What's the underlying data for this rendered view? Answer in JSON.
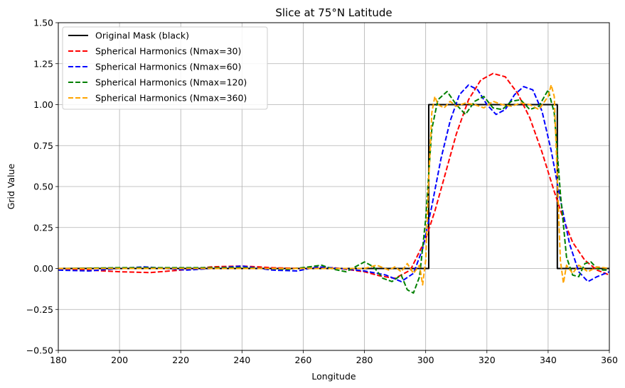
{
  "chart_data": {
    "type": "line",
    "title": "Slice at 75°N Latitude",
    "xlabel": "Longitude",
    "ylabel": "Grid Value",
    "xlim": [
      180,
      360
    ],
    "ylim": [
      -0.5,
      1.5
    ],
    "xticks": [
      180,
      200,
      220,
      240,
      260,
      280,
      300,
      320,
      340,
      360
    ],
    "yticks": [
      -0.5,
      -0.25,
      0.0,
      0.25,
      0.5,
      0.75,
      1.0,
      1.25,
      1.5
    ],
    "xtick_labels": [
      "180",
      "200",
      "220",
      "240",
      "260",
      "280",
      "300",
      "320",
      "340",
      "360"
    ],
    "ytick_labels": [
      "−0.50",
      "−0.25",
      "0.00",
      "0.25",
      "0.50",
      "0.75",
      "1.00",
      "1.25",
      "1.50"
    ],
    "grid": true,
    "legend_position": "top-left",
    "series": [
      {
        "name": "Original Mask (black)",
        "color": "#000000",
        "style": "solid",
        "x": [
          180,
          301,
          301,
          343,
          343,
          360
        ],
        "y": [
          0,
          0,
          1,
          1,
          0,
          0
        ]
      },
      {
        "name": "Spherical Harmonics (Nmax=30)",
        "color": "#ff0000",
        "style": "dashed",
        "x": [
          180,
          190,
          200,
          210,
          220,
          230,
          240,
          250,
          260,
          270,
          280,
          285,
          290,
          295,
          300,
          303,
          306,
          310,
          314,
          318,
          322,
          326,
          330,
          334,
          338,
          342,
          345,
          348,
          352,
          356,
          360
        ],
        "y": [
          0.0,
          -0.01,
          -0.02,
          -0.025,
          -0.01,
          0.01,
          0.015,
          0.005,
          0.0,
          0.005,
          -0.02,
          -0.045,
          -0.06,
          -0.01,
          0.18,
          0.35,
          0.55,
          0.82,
          1.03,
          1.15,
          1.19,
          1.17,
          1.07,
          0.92,
          0.71,
          0.47,
          0.3,
          0.16,
          0.05,
          -0.01,
          -0.04
        ]
      },
      {
        "name": "Spherical Harmonics (Nmax=60)",
        "color": "#0000ff",
        "style": "dashed",
        "x": [
          180,
          190,
          200,
          208,
          215,
          222,
          230,
          240,
          250,
          258,
          265,
          272,
          280,
          287,
          292,
          296,
          299,
          302,
          305,
          308,
          311,
          314,
          317,
          320,
          323,
          326,
          329,
          332,
          335,
          338,
          341,
          344,
          347,
          350,
          353,
          356,
          360
        ],
        "y": [
          -0.01,
          -0.015,
          0.0,
          0.01,
          0.0,
          -0.01,
          0.0,
          0.015,
          -0.01,
          -0.015,
          0.01,
          0.0,
          -0.015,
          -0.04,
          -0.08,
          -0.03,
          0.12,
          0.38,
          0.67,
          0.9,
          1.06,
          1.12,
          1.09,
          1.0,
          0.94,
          0.97,
          1.06,
          1.11,
          1.09,
          0.96,
          0.72,
          0.42,
          0.15,
          -0.02,
          -0.08,
          -0.05,
          -0.02
        ]
      },
      {
        "name": "Spherical Harmonics (Nmax=120)",
        "color": "#008000",
        "style": "dashed",
        "x": [
          180,
          200,
          220,
          240,
          255,
          262,
          266,
          270,
          274,
          277,
          280,
          283,
          286,
          289,
          292,
          294,
          296,
          298,
          300,
          302,
          304,
          307,
          310,
          313,
          316,
          319,
          322,
          325,
          328,
          331,
          334,
          337,
          340,
          342,
          344,
          346,
          348,
          350,
          352,
          354,
          356,
          358,
          360
        ],
        "y": [
          0.0,
          0.005,
          0.005,
          0.005,
          -0.005,
          0.01,
          0.02,
          -0.005,
          -0.02,
          0.01,
          0.04,
          0.01,
          -0.06,
          -0.08,
          -0.04,
          -0.13,
          -0.15,
          -0.05,
          0.3,
          0.85,
          1.03,
          1.08,
          1.0,
          0.94,
          1.02,
          1.05,
          0.98,
          0.97,
          1.02,
          1.03,
          0.97,
          0.99,
          1.09,
          0.95,
          0.46,
          0.07,
          -0.04,
          -0.05,
          0.03,
          0.04,
          0.0,
          -0.01,
          -0.01
        ]
      },
      {
        "name": "Spherical Harmonics (Nmax=360)",
        "color": "#ffa500",
        "style": "dashed",
        "x": [
          180,
          220,
          260,
          280,
          284,
          288,
          290,
          292,
          294,
          296,
          298,
          299,
          300,
          301,
          302,
          303,
          304,
          306,
          308,
          310,
          313,
          316,
          319,
          322,
          325,
          328,
          331,
          334,
          337,
          340,
          341,
          342,
          343,
          344,
          345,
          346,
          348,
          350,
          353,
          356,
          360
        ],
        "y": [
          0.0,
          0.0,
          0.0,
          0.0,
          0.02,
          -0.01,
          0.01,
          -0.02,
          0.03,
          -0.03,
          0.02,
          -0.1,
          0.05,
          0.55,
          0.95,
          1.05,
          1.0,
          0.98,
          1.02,
          0.99,
          1.01,
          1.0,
          0.98,
          1.02,
          1.0,
          0.99,
          1.01,
          1.0,
          0.97,
          1.05,
          1.12,
          1.05,
          0.55,
          0.05,
          -0.09,
          0.02,
          -0.03,
          0.02,
          -0.02,
          0.01,
          0.0
        ]
      }
    ]
  }
}
